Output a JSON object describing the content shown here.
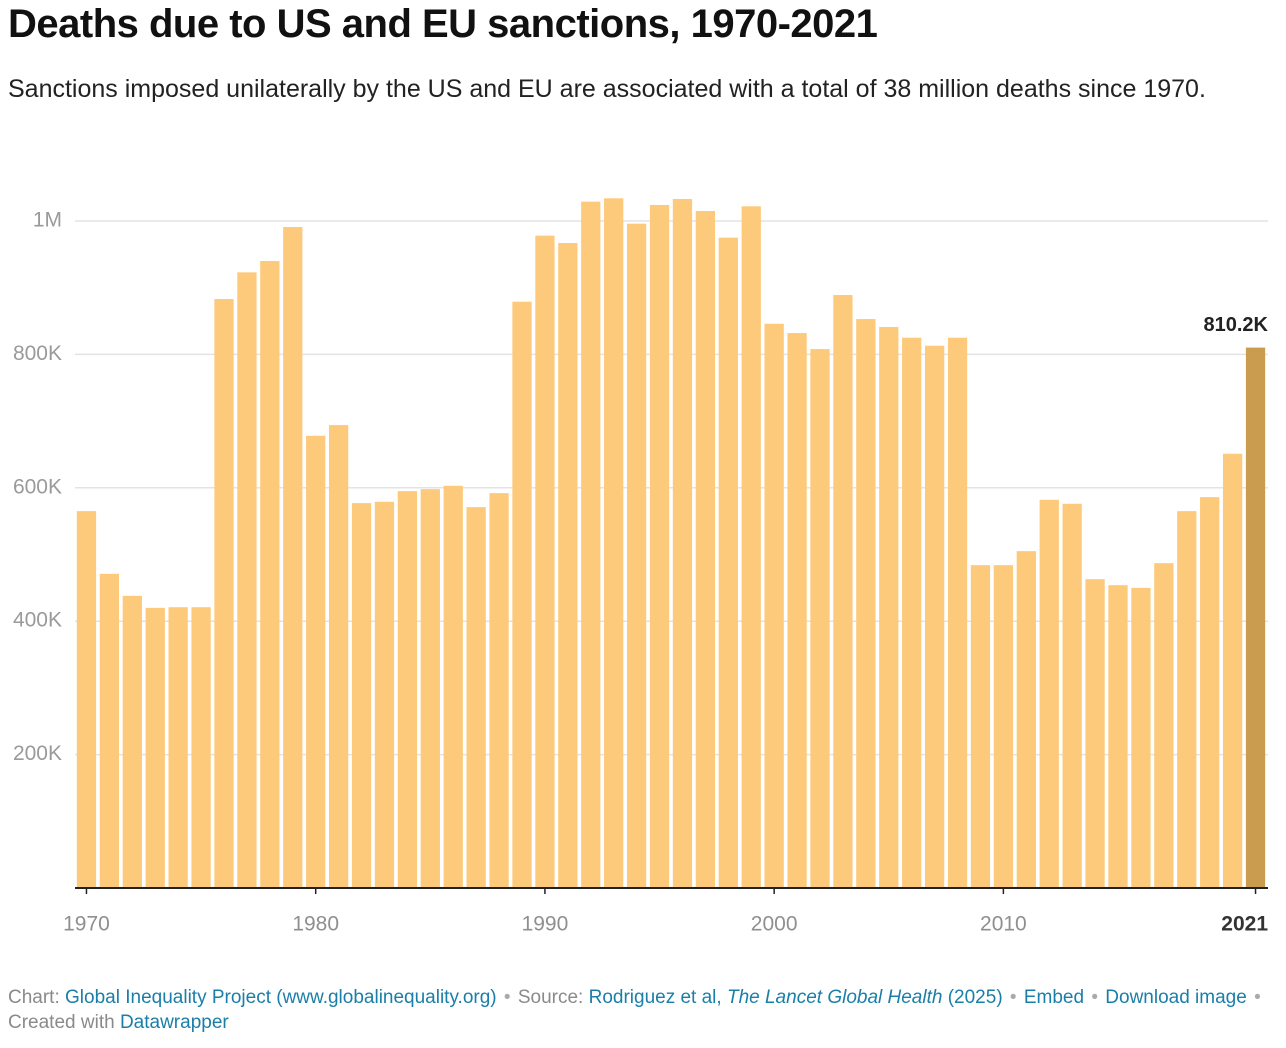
{
  "chart_data": {
    "type": "bar",
    "title": "Deaths due to US and EU sanctions, 1970-2021",
    "subtitle": "Sanctions imposed unilaterally by the US and EU are associated with a total of 38 million deaths since 1970.",
    "x": [
      1970,
      1971,
      1972,
      1973,
      1974,
      1975,
      1976,
      1977,
      1978,
      1979,
      1980,
      1981,
      1982,
      1983,
      1984,
      1985,
      1986,
      1987,
      1988,
      1989,
      1990,
      1991,
      1992,
      1993,
      1994,
      1995,
      1996,
      1997,
      1998,
      1999,
      2000,
      2001,
      2002,
      2003,
      2004,
      2005,
      2006,
      2007,
      2008,
      2009,
      2010,
      2011,
      2012,
      2013,
      2014,
      2015,
      2016,
      2017,
      2018,
      2019,
      2020,
      2021
    ],
    "values": [
      565000,
      471000,
      438000,
      420000,
      421000,
      421000,
      883000,
      923000,
      940000,
      991000,
      678000,
      694000,
      577000,
      579000,
      595000,
      598000,
      603000,
      571000,
      592000,
      879000,
      978000,
      967000,
      1029000,
      1034000,
      996000,
      1024000,
      1033000,
      1015000,
      975000,
      1022000,
      846000,
      832000,
      808000,
      889000,
      853000,
      841000,
      825000,
      813000,
      825000,
      484000,
      484000,
      505000,
      582000,
      576000,
      463000,
      454000,
      450000,
      487000,
      565000,
      586000,
      651000,
      810200
    ],
    "value_labels": [
      null,
      null,
      null,
      null,
      null,
      null,
      null,
      null,
      null,
      null,
      null,
      null,
      null,
      null,
      null,
      null,
      null,
      null,
      null,
      null,
      null,
      null,
      null,
      null,
      null,
      null,
      null,
      null,
      null,
      null,
      null,
      null,
      null,
      null,
      null,
      null,
      null,
      null,
      null,
      null,
      null,
      null,
      null,
      null,
      null,
      null,
      null,
      null,
      null,
      null,
      null,
      "810.2K"
    ],
    "color": "#fdc97a",
    "highlight": {
      "x": 2021,
      "color": "#c99c4f"
    },
    "xlim": [
      1969.5,
      2021.5
    ],
    "xticks": [
      1970,
      1980,
      1990,
      2000,
      2010,
      2021
    ],
    "ylim": [
      0,
      1050000
    ],
    "yticks": [
      {
        "value": 200000,
        "label": "200K"
      },
      {
        "value": 400000,
        "label": "400K"
      },
      {
        "value": 600000,
        "label": "600K"
      },
      {
        "value": 800000,
        "label": "800K"
      },
      {
        "value": 1000000,
        "label": "1M"
      }
    ],
    "grid": true
  },
  "footer": {
    "chart_label": "Chart:",
    "chart_link": "Global Inequality Project (www.globalinequality.org)",
    "separator": "•",
    "source_label": "Source:",
    "source_authors": "Rodriguez et al,",
    "source_journal": "The Lancet Global Health",
    "source_year": "(2025)",
    "embed": "Embed",
    "download": "Download image",
    "created_label": "Created with",
    "created_link": "Datawrapper"
  }
}
